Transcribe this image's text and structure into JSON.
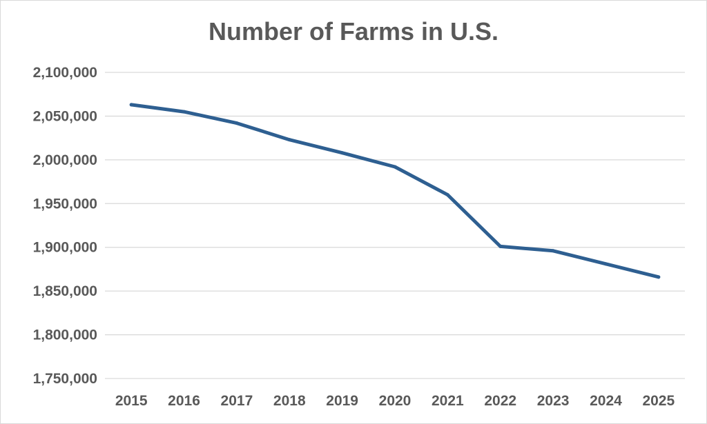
{
  "chart_data": {
    "type": "line",
    "title": "Number of Farms in U.S.",
    "xlabel": "",
    "ylabel": "",
    "x": [
      "2015",
      "2016",
      "2017",
      "2018",
      "2019",
      "2020",
      "2021",
      "2022",
      "2023",
      "2024",
      "2025"
    ],
    "series": [
      {
        "values": [
          2063000,
          2055000,
          2042000,
          2023000,
          2008000,
          1992000,
          1960000,
          1901000,
          1896000,
          1881000,
          1866000
        ],
        "color": "#2e5f91"
      }
    ],
    "ylim": [
      1750000,
      2100000
    ],
    "yticks": [
      "2,100,000",
      "2,050,000",
      "2,000,000",
      "1,950,000",
      "1,900,000",
      "1,850,000",
      "1,800,000",
      "1,750,000"
    ],
    "ytick_values": [
      2100000,
      2050000,
      2000000,
      1950000,
      1900000,
      1850000,
      1800000,
      1750000
    ],
    "grid": true,
    "legend": "none"
  }
}
